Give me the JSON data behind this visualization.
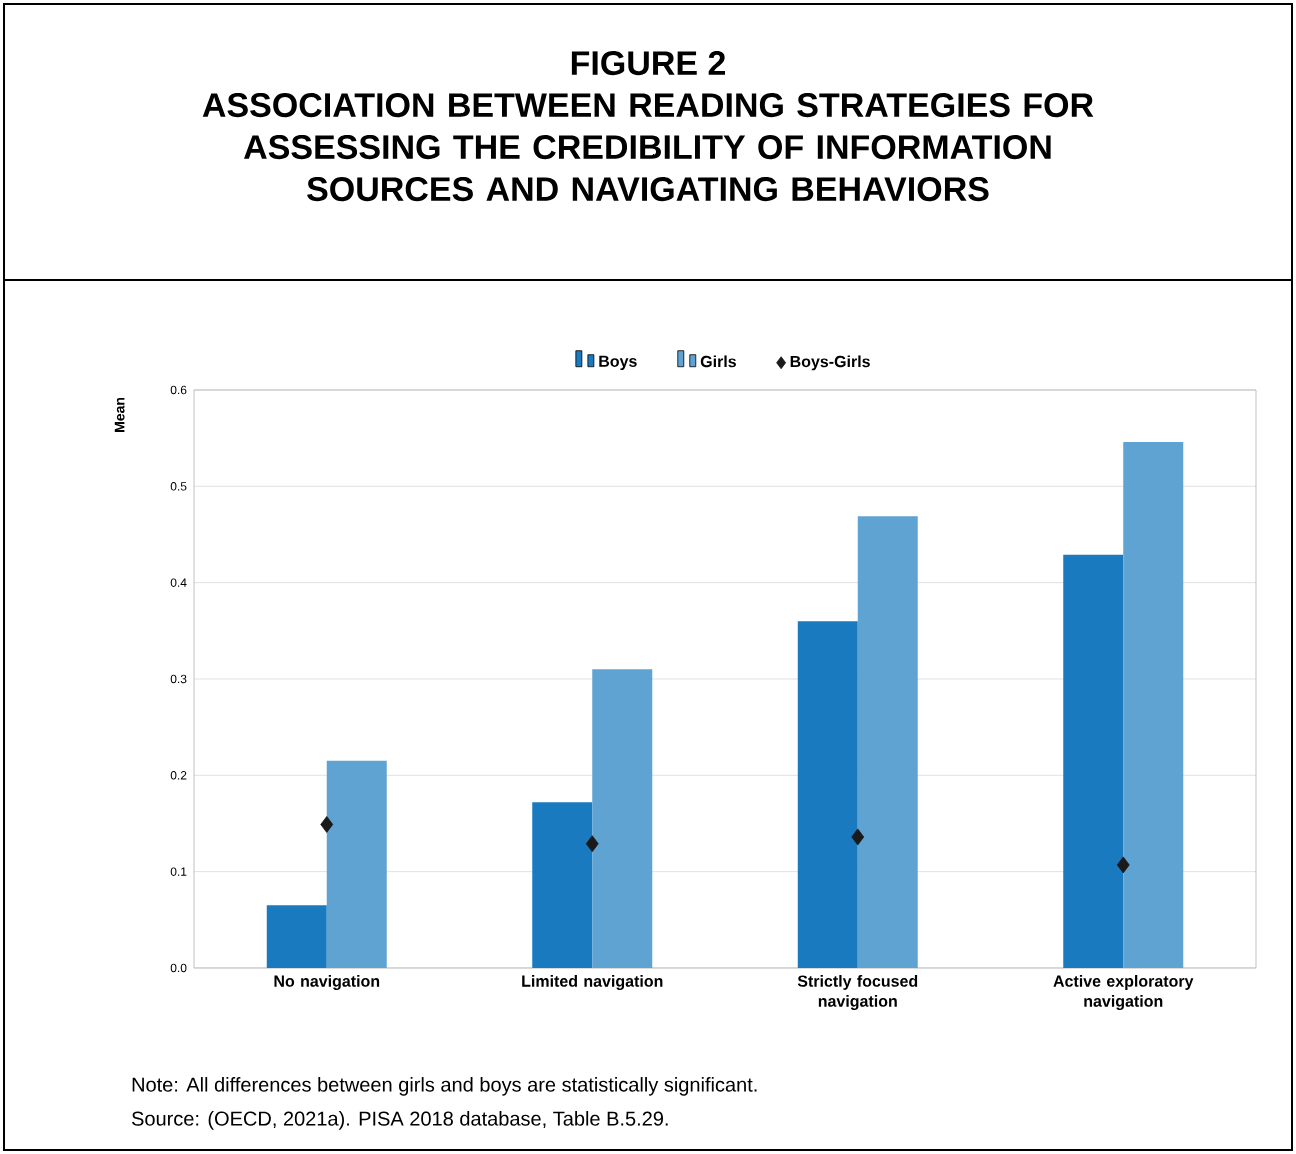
{
  "chart_data": {
    "type": "bar",
    "title": "FIGURE 2",
    "subtitle": "ASSOCIATION BETWEEN READING STRATEGIES FOR ASSESSING THE CREDIBILITY OF INFORMATION SOURCES AND NAVIGATING BEHAVIORS",
    "ylabel": "Mean",
    "categories": [
      "No navigation",
      "Limited navigation",
      "Strictly focused navigation",
      "Active exploratory navigation"
    ],
    "series": [
      {
        "name": "Boys",
        "color": "#1a7abf",
        "values": [
          0.065,
          0.172,
          0.36,
          0.429
        ]
      },
      {
        "name": "Girls",
        "color": "#5fa3d3",
        "values": [
          0.215,
          0.31,
          0.469,
          0.546
        ]
      },
      {
        "name": "Boys-Girls",
        "type": "scatter",
        "marker": "diamond",
        "color": "#1a1a1a",
        "x": [
          "No navigation",
          "Limited navigation",
          "Strictly focused navigation",
          "Active exploratory navigation"
        ],
        "values": [
          0.149,
          0.129,
          0.136,
          0.107
        ]
      }
    ],
    "ylim": [
      0,
      0.6
    ],
    "yticks": [
      {
        "value": 0,
        "label": "0.0"
      },
      0.1,
      0.2,
      0.3,
      0.4,
      0.5,
      0.6
    ],
    "grid": "y",
    "legend": "top",
    "annotations": [
      "Note: All differences between girls and boys are statistically significant.",
      "Source: (OECD, 2021a). PISA 2018 database, Table B.5.29."
    ]
  }
}
